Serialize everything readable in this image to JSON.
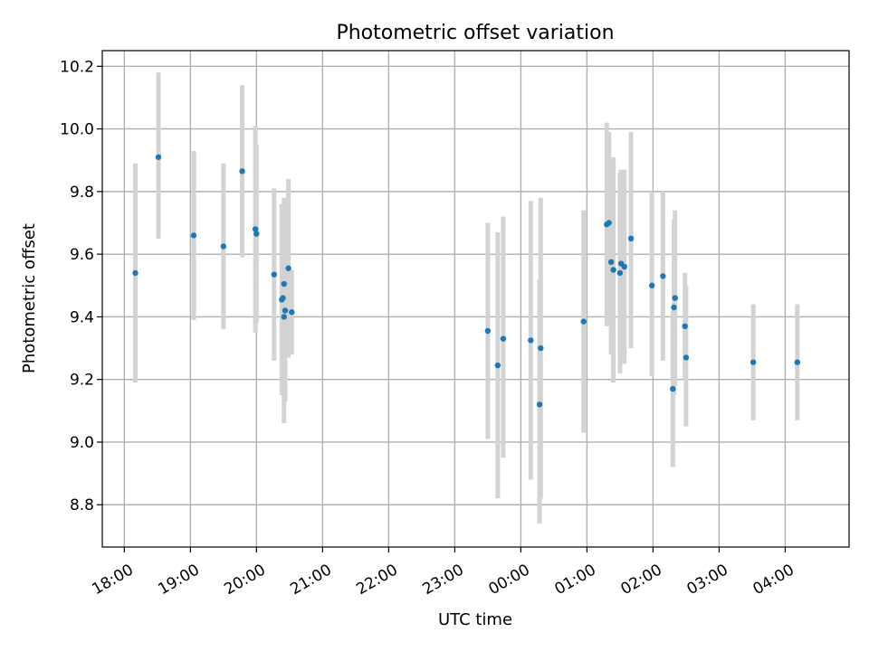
{
  "chart_data": {
    "type": "scatter",
    "title": "Photometric offset variation",
    "xlabel": "UTC time",
    "ylabel": "Photometric offset",
    "xlim": [
      "17:40",
      "04:58"
    ],
    "ylim": [
      8.665,
      10.25
    ],
    "x_ticks": [
      "18:00",
      "19:00",
      "20:00",
      "21:00",
      "22:00",
      "23:00",
      "00:00",
      "01:00",
      "02:00",
      "03:00",
      "04:00"
    ],
    "y_ticks": [
      8.8,
      9.0,
      9.2,
      9.4,
      9.6,
      9.8,
      10.0,
      10.2
    ],
    "grid": true,
    "marker_color": "#1f77b4",
    "errorbar_color": "#d3d3d3",
    "points": [
      {
        "t": "18:10",
        "y": 9.54,
        "lo": 9.19,
        "hi": 9.89
      },
      {
        "t": "18:31",
        "y": 9.91,
        "lo": 9.65,
        "hi": 10.18
      },
      {
        "t": "19:03",
        "y": 9.66,
        "lo": 9.39,
        "hi": 9.93
      },
      {
        "t": "19:30",
        "y": 9.625,
        "lo": 9.36,
        "hi": 9.89
      },
      {
        "t": "19:47",
        "y": 9.865,
        "lo": 9.59,
        "hi": 10.14
      },
      {
        "t": "19:59",
        "y": 9.68,
        "lo": 9.35,
        "hi": 10.01
      },
      {
        "t": "20:00",
        "y": 9.665,
        "lo": 9.38,
        "hi": 9.95
      },
      {
        "t": "20:16",
        "y": 9.535,
        "lo": 9.26,
        "hi": 9.81
      },
      {
        "t": "20:23",
        "y": 9.455,
        "lo": 9.15,
        "hi": 9.76
      },
      {
        "t": "20:24",
        "y": 9.46,
        "lo": 9.17,
        "hi": 9.75
      },
      {
        "t": "20:25",
        "y": 9.505,
        "lo": 9.22,
        "hi": 9.78
      },
      {
        "t": "20:25",
        "y": 9.4,
        "lo": 9.06,
        "hi": 9.74
      },
      {
        "t": "20:26",
        "y": 9.42,
        "lo": 9.13,
        "hi": 9.71
      },
      {
        "t": "20:29",
        "y": 9.555,
        "lo": 9.27,
        "hi": 9.84
      },
      {
        "t": "20:32",
        "y": 9.415,
        "lo": 9.28,
        "hi": 9.55
      },
      {
        "t": "23:30",
        "y": 9.355,
        "lo": 9.01,
        "hi": 9.7
      },
      {
        "t": "23:39",
        "y": 9.245,
        "lo": 8.82,
        "hi": 9.67
      },
      {
        "t": "23:44",
        "y": 9.33,
        "lo": 8.95,
        "hi": 9.72
      },
      {
        "t": "00:09",
        "y": 9.325,
        "lo": 8.88,
        "hi": 9.77
      },
      {
        "t": "00:17",
        "y": 9.12,
        "lo": 8.74,
        "hi": 9.52
      },
      {
        "t": "00:18",
        "y": 9.3,
        "lo": 8.82,
        "hi": 9.78
      },
      {
        "t": "00:57",
        "y": 9.385,
        "lo": 9.03,
        "hi": 9.74
      },
      {
        "t": "01:18",
        "y": 9.695,
        "lo": 9.37,
        "hi": 10.02
      },
      {
        "t": "01:20",
        "y": 9.7,
        "lo": 9.41,
        "hi": 9.99
      },
      {
        "t": "01:22",
        "y": 9.575,
        "lo": 9.28,
        "hi": 9.87
      },
      {
        "t": "01:24",
        "y": 9.55,
        "lo": 9.19,
        "hi": 9.91
      },
      {
        "t": "01:30",
        "y": 9.54,
        "lo": 9.22,
        "hi": 9.86
      },
      {
        "t": "01:31",
        "y": 9.57,
        "lo": 9.27,
        "hi": 9.87
      },
      {
        "t": "01:34",
        "y": 9.56,
        "lo": 9.25,
        "hi": 9.87
      },
      {
        "t": "01:40",
        "y": 9.65,
        "lo": 9.3,
        "hi": 9.99
      },
      {
        "t": "01:59",
        "y": 9.5,
        "lo": 9.21,
        "hi": 9.8
      },
      {
        "t": "02:09",
        "y": 9.53,
        "lo": 9.26,
        "hi": 9.8
      },
      {
        "t": "02:18",
        "y": 9.17,
        "lo": 8.92,
        "hi": 9.42
      },
      {
        "t": "02:19",
        "y": 9.43,
        "lo": 9.15,
        "hi": 9.71
      },
      {
        "t": "02:20",
        "y": 9.46,
        "lo": 9.18,
        "hi": 9.74
      },
      {
        "t": "02:29",
        "y": 9.37,
        "lo": 9.2,
        "hi": 9.54
      },
      {
        "t": "02:30",
        "y": 9.27,
        "lo": 9.05,
        "hi": 9.5
      },
      {
        "t": "03:31",
        "y": 9.255,
        "lo": 9.07,
        "hi": 9.44
      },
      {
        "t": "04:11",
        "y": 9.255,
        "lo": 9.07,
        "hi": 9.44
      }
    ]
  }
}
